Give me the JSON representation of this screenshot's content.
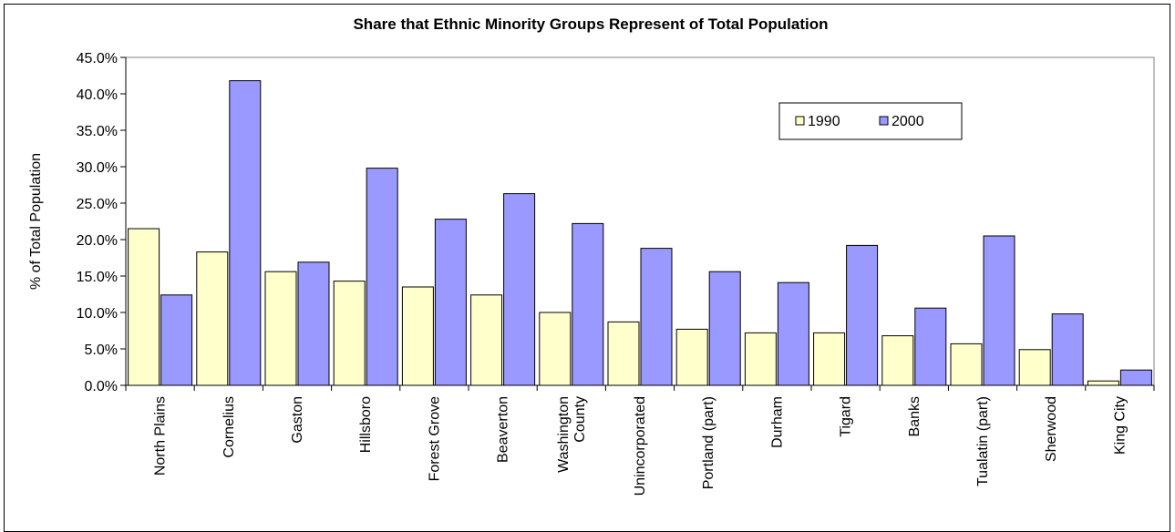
{
  "chart_data": {
    "type": "bar",
    "title": "Share that Ethnic Minority Groups Represent of Total Population",
    "xlabel": "",
    "ylabel": "% of Total Population",
    "ylim": [
      0,
      45
    ],
    "yticks": [
      "0.0%",
      "5.0%",
      "10.0%",
      "15.0%",
      "20.0%",
      "25.0%",
      "30.0%",
      "35.0%",
      "40.0%",
      "45.0%"
    ],
    "categories": [
      [
        "North Plains"
      ],
      [
        "Cornelius"
      ],
      [
        "Gaston"
      ],
      [
        "Hillsboro"
      ],
      [
        "Forest Grove"
      ],
      [
        "Beaverton"
      ],
      [
        "Washington",
        "County"
      ],
      [
        "Unincorporated"
      ],
      [
        "Portland (part)"
      ],
      [
        "Durham"
      ],
      [
        "Tigard"
      ],
      [
        "Banks"
      ],
      [
        "Tualatin (part)"
      ],
      [
        "Sherwood"
      ],
      [
        "King City"
      ]
    ],
    "series": [
      {
        "name": "1990",
        "color": "#ffffcc",
        "values": [
          21.5,
          18.3,
          15.6,
          14.3,
          13.5,
          12.4,
          10.0,
          8.7,
          7.7,
          7.2,
          7.2,
          6.8,
          5.7,
          4.9,
          0.6
        ]
      },
      {
        "name": "2000",
        "color": "#9999ff",
        "values": [
          12.4,
          41.8,
          16.9,
          29.8,
          22.8,
          26.3,
          22.2,
          18.8,
          15.6,
          14.1,
          19.2,
          10.6,
          20.5,
          9.8,
          2.1
        ]
      }
    ],
    "grid": false,
    "legend_position": "top-right"
  }
}
